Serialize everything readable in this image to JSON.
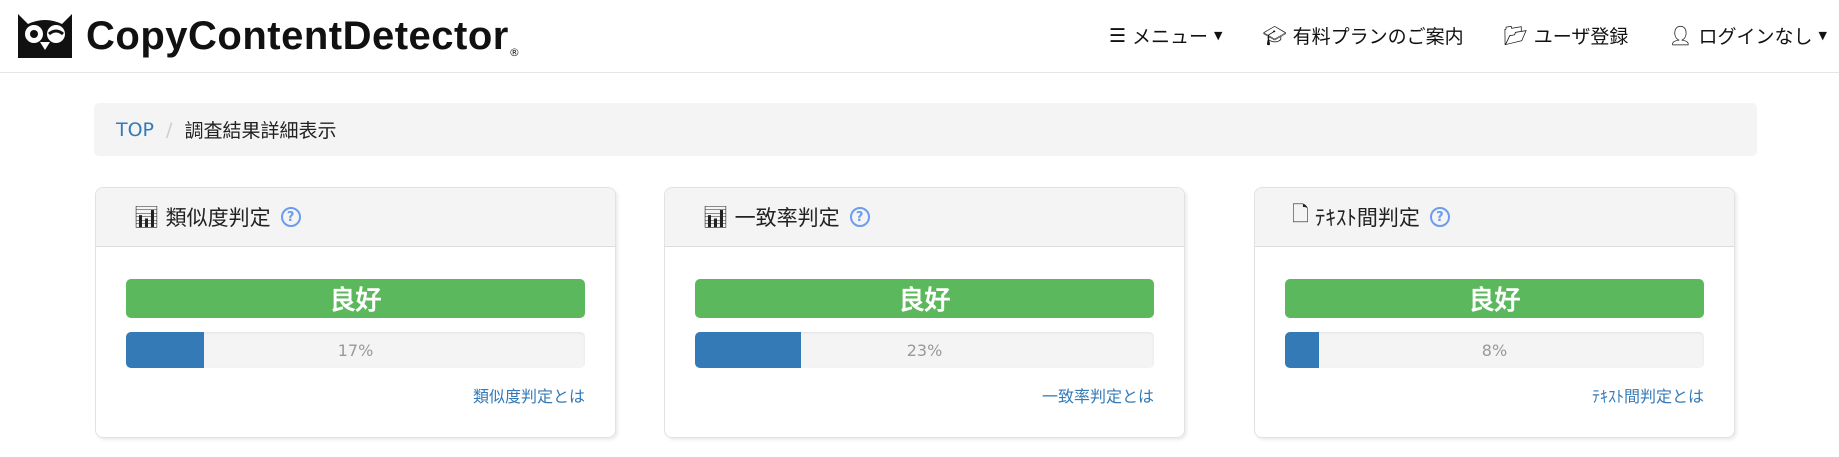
{
  "header": {
    "logo_text": "CopyContentDetector",
    "logo_reg": "®",
    "nav": [
      {
        "icon": "bars-icon",
        "label": "メニュー",
        "dropdown": true
      },
      {
        "icon": "graduation-cap-icon",
        "label": "有料プランのご案内",
        "dropdown": false
      },
      {
        "icon": "folder-open-icon",
        "label": "ユーザ登録",
        "dropdown": false
      },
      {
        "icon": "user-icon",
        "label": "ログインなし",
        "dropdown": true
      }
    ]
  },
  "breadcrumb": {
    "home": "TOP",
    "separator": "/",
    "current": "調査結果詳細表示"
  },
  "cards": [
    {
      "icon": "bar-chart-icon",
      "title": "類似度判定",
      "verdict": "良好",
      "percent": 17,
      "percent_label": "17%",
      "link": "類似度判定とは"
    },
    {
      "icon": "bar-chart-icon",
      "title": "一致率判定",
      "verdict": "良好",
      "percent": 23,
      "percent_label": "23%",
      "link": "一致率判定とは"
    },
    {
      "icon": "word-file-icon",
      "title": "ﾃｷｽﾄ間判定",
      "verdict": "良好",
      "percent": 8,
      "percent_label": "8%",
      "link": "ﾃｷｽﾄ間判定とは"
    }
  ],
  "colors": {
    "good": "#5cb85c",
    "progress": "#337ab7",
    "link": "#337ab7",
    "help": "#6a9cf0"
  }
}
